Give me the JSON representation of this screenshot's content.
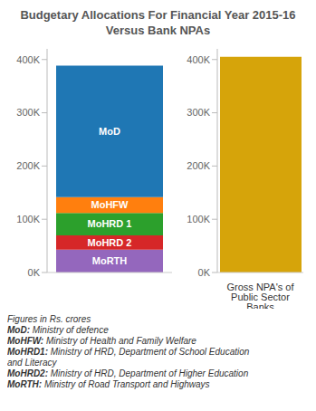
{
  "title": "Budgetary Allocations For Financial Year 2015-16 Versus Bank NPAs",
  "chart_data": [
    {
      "type": "bar",
      "stacked": true,
      "categories": [
        null
      ],
      "series": [
        {
          "name": "MoRTH",
          "color": "#9467bd",
          "values": [
            42913
          ]
        },
        {
          "name": "MoHRD 2",
          "color": "#d62728",
          "values": [
            26855
          ]
        },
        {
          "name": "MoHRD 1",
          "color": "#2ca02c",
          "values": [
            42219
          ]
        },
        {
          "name": "MoHFW",
          "color": "#ff7f0e",
          "values": [
            29653
          ]
        },
        {
          "name": "MoD",
          "color": "#1f77b4",
          "values": [
            246727
          ]
        }
      ],
      "ylim": [
        0,
        420000
      ],
      "yticks": [
        {
          "value": 0,
          "label": "0K"
        },
        {
          "value": 100000,
          "label": "100K"
        },
        {
          "value": 200000,
          "label": "200K"
        },
        {
          "value": 300000,
          "label": "300K"
        },
        {
          "value": 400000,
          "label": "400K"
        }
      ],
      "grid": false
    },
    {
      "type": "bar",
      "categories": [
        "Gross NPA's of Public Sector Banks"
      ],
      "values": [
        405000
      ],
      "color": "#d6a40a",
      "ylim": [
        0,
        420000
      ],
      "yticks": [
        {
          "value": 0,
          "label": "0K"
        },
        {
          "value": 100000,
          "label": "100K"
        },
        {
          "value": 200000,
          "label": "200K"
        },
        {
          "value": 300000,
          "label": "300K"
        },
        {
          "value": 400000,
          "label": "400K"
        }
      ],
      "grid": false
    }
  ],
  "notes": [
    "Figures in Rs. crores",
    "MoD: Ministry of defence",
    "MoHFW: Ministry of Health and Family Welfare",
    "MoHRD1: Ministry of HRD, Department of School Education and Literacy",
    "MoHRD2: Ministry of HRD, Department of  Higher Education",
    "MoRTH: Ministry of Road Transport and Highways"
  ]
}
